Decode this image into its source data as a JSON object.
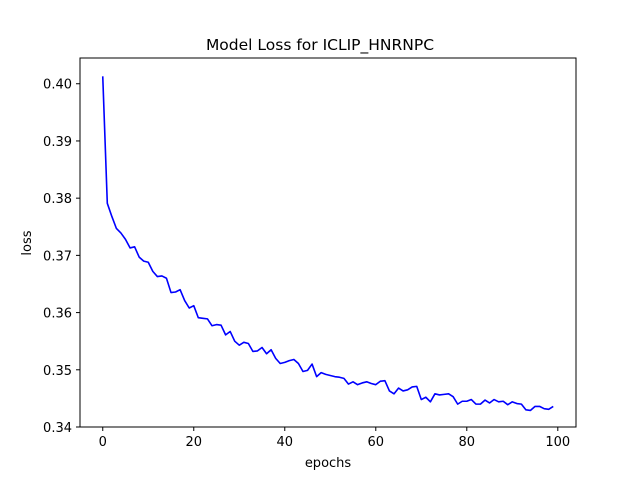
{
  "chart_data": {
    "type": "line",
    "title": "Model Loss for ICLIP_HNRNPC",
    "xlabel": "epochs",
    "ylabel": "loss",
    "xlim": [
      -5,
      104
    ],
    "ylim": [
      0.34,
      0.4045
    ],
    "xticks": [
      0,
      20,
      40,
      60,
      80,
      100
    ],
    "yticks": [
      0.34,
      0.35,
      0.36,
      0.37,
      0.38,
      0.39,
      0.4
    ],
    "ytick_labels": [
      "0.34",
      "0.35",
      "0.36",
      "0.37",
      "0.38",
      "0.39",
      "0.40"
    ],
    "grid": false,
    "series": [
      {
        "color": "#0000ff",
        "x": [
          0,
          1,
          2,
          3,
          4,
          5,
          6,
          7,
          8,
          9,
          10,
          11,
          12,
          13,
          14,
          15,
          16,
          17,
          18,
          19,
          20,
          21,
          22,
          23,
          24,
          25,
          26,
          27,
          28,
          29,
          30,
          31,
          32,
          33,
          34,
          35,
          36,
          37,
          38,
          39,
          40,
          41,
          42,
          43,
          44,
          45,
          46,
          47,
          48,
          49,
          50,
          51,
          52,
          53,
          54,
          55,
          56,
          57,
          58,
          59,
          60,
          61,
          62,
          63,
          64,
          65,
          66,
          67,
          68,
          69,
          70,
          71,
          72,
          73,
          74,
          75,
          76,
          77,
          78,
          79,
          80,
          81,
          82,
          83,
          84,
          85,
          86,
          87,
          88,
          89,
          90,
          91,
          92,
          93,
          94,
          95,
          96,
          97,
          98,
          99
        ],
        "values": [
          0.4013,
          0.3791,
          0.3768,
          0.3747,
          0.3739,
          0.3728,
          0.3713,
          0.3715,
          0.3697,
          0.369,
          0.3688,
          0.3672,
          0.3663,
          0.3664,
          0.366,
          0.3635,
          0.3636,
          0.364,
          0.3621,
          0.3608,
          0.3612,
          0.3591,
          0.359,
          0.3589,
          0.3577,
          0.3579,
          0.3578,
          0.3561,
          0.3567,
          0.355,
          0.3543,
          0.3548,
          0.3546,
          0.3532,
          0.3533,
          0.3539,
          0.3528,
          0.3535,
          0.352,
          0.3511,
          0.3513,
          0.3516,
          0.3518,
          0.3511,
          0.3497,
          0.3499,
          0.351,
          0.3488,
          0.3495,
          0.3492,
          0.349,
          0.3488,
          0.3487,
          0.3485,
          0.3475,
          0.3479,
          0.3474,
          0.3477,
          0.3479,
          0.3476,
          0.3474,
          0.348,
          0.3481,
          0.3463,
          0.3458,
          0.3468,
          0.3463,
          0.3465,
          0.347,
          0.3471,
          0.3448,
          0.3452,
          0.3444,
          0.3458,
          0.3456,
          0.3457,
          0.3458,
          0.3453,
          0.344,
          0.3445,
          0.3445,
          0.3448,
          0.344,
          0.344,
          0.3447,
          0.3442,
          0.3448,
          0.3444,
          0.3445,
          0.3439,
          0.3444,
          0.3441,
          0.344,
          0.343,
          0.3429,
          0.3436,
          0.3436,
          0.3432,
          0.3431,
          0.3436
        ]
      }
    ]
  }
}
